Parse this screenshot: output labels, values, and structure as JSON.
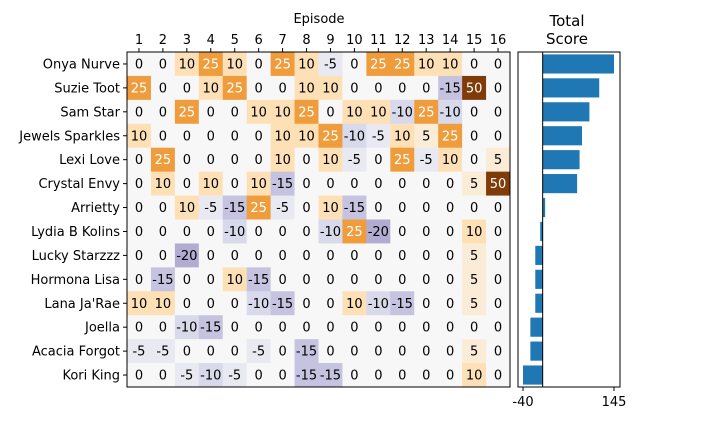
{
  "chart_data": [
    {
      "type": "heatmap",
      "xlabel": "Episode",
      "x_ticks": [
        "1",
        "2",
        "3",
        "4",
        "5",
        "6",
        "7",
        "8",
        "9",
        "10",
        "11",
        "12",
        "13",
        "14",
        "15",
        "16"
      ],
      "rows": [
        "Onya Nurve",
        "Suzie Toot",
        "Sam Star",
        "Jewels Sparkles",
        "Lexi Love",
        "Crystal Envy",
        "Arrietty",
        "Lydia B Kolins",
        "Lucky Starzzz",
        "Hormona Lisa",
        "Lana Ja'Rae",
        "Joella",
        "Acacia Forgot",
        "Kori King"
      ],
      "values": [
        [
          0,
          0,
          10,
          25,
          10,
          0,
          25,
          10,
          -5,
          0,
          25,
          25,
          10,
          10,
          0,
          0
        ],
        [
          25,
          0,
          0,
          10,
          25,
          0,
          0,
          10,
          10,
          0,
          0,
          0,
          0,
          -15,
          50,
          0
        ],
        [
          0,
          0,
          25,
          0,
          0,
          10,
          10,
          25,
          0,
          10,
          10,
          -10,
          25,
          -10,
          0,
          0
        ],
        [
          10,
          0,
          0,
          0,
          0,
          0,
          10,
          10,
          25,
          -10,
          -5,
          10,
          5,
          25,
          0,
          0
        ],
        [
          0,
          25,
          0,
          0,
          0,
          0,
          10,
          0,
          10,
          -5,
          0,
          25,
          -5,
          10,
          0,
          5
        ],
        [
          0,
          10,
          0,
          10,
          0,
          10,
          -15,
          0,
          0,
          0,
          0,
          0,
          0,
          0,
          5,
          50
        ],
        [
          0,
          0,
          10,
          -5,
          -15,
          25,
          -5,
          0,
          10,
          -15,
          0,
          0,
          0,
          0,
          0,
          0
        ],
        [
          0,
          0,
          0,
          0,
          -10,
          0,
          0,
          0,
          -10,
          25,
          -20,
          0,
          0,
          0,
          10,
          0
        ],
        [
          0,
          0,
          -20,
          0,
          0,
          0,
          0,
          0,
          0,
          0,
          0,
          0,
          0,
          0,
          5,
          0
        ],
        [
          0,
          -15,
          0,
          0,
          10,
          -15,
          0,
          0,
          0,
          0,
          0,
          0,
          0,
          0,
          5,
          0
        ],
        [
          10,
          10,
          0,
          0,
          0,
          -10,
          -15,
          0,
          0,
          10,
          -10,
          -15,
          0,
          0,
          5,
          0
        ],
        [
          0,
          0,
          -10,
          -15,
          0,
          0,
          0,
          0,
          0,
          0,
          0,
          0,
          0,
          0,
          0,
          0
        ],
        [
          -5,
          -5,
          0,
          0,
          0,
          -5,
          0,
          -15,
          0,
          0,
          0,
          0,
          0,
          0,
          5,
          0
        ],
        [
          0,
          0,
          -5,
          -10,
          -5,
          0,
          0,
          -15,
          -15,
          0,
          0,
          0,
          0,
          0,
          10,
          0
        ]
      ],
      "colormap": "PuOr_r",
      "color_range": [
        -50,
        50
      ]
    },
    {
      "type": "bar",
      "orientation": "horizontal",
      "title": "Total\nScore",
      "title_lines": [
        "Total",
        "Score"
      ],
      "categories": [
        "Onya Nurve",
        "Suzie Toot",
        "Sam Star",
        "Jewels Sparkles",
        "Lexi Love",
        "Crystal Envy",
        "Arrietty",
        "Lydia B Kolins",
        "Lucky Starzzz",
        "Hormona Lisa",
        "Lana Ja'Rae",
        "Joella",
        "Acacia Forgot",
        "Kori King"
      ],
      "values": [
        145,
        115,
        95,
        80,
        75,
        70,
        5,
        -5,
        -15,
        -15,
        -15,
        -25,
        -25,
        -40
      ],
      "x_ticks": [
        "-40",
        "145"
      ],
      "xlim": [
        -40,
        145
      ],
      "color": "#1f77b4"
    }
  ]
}
